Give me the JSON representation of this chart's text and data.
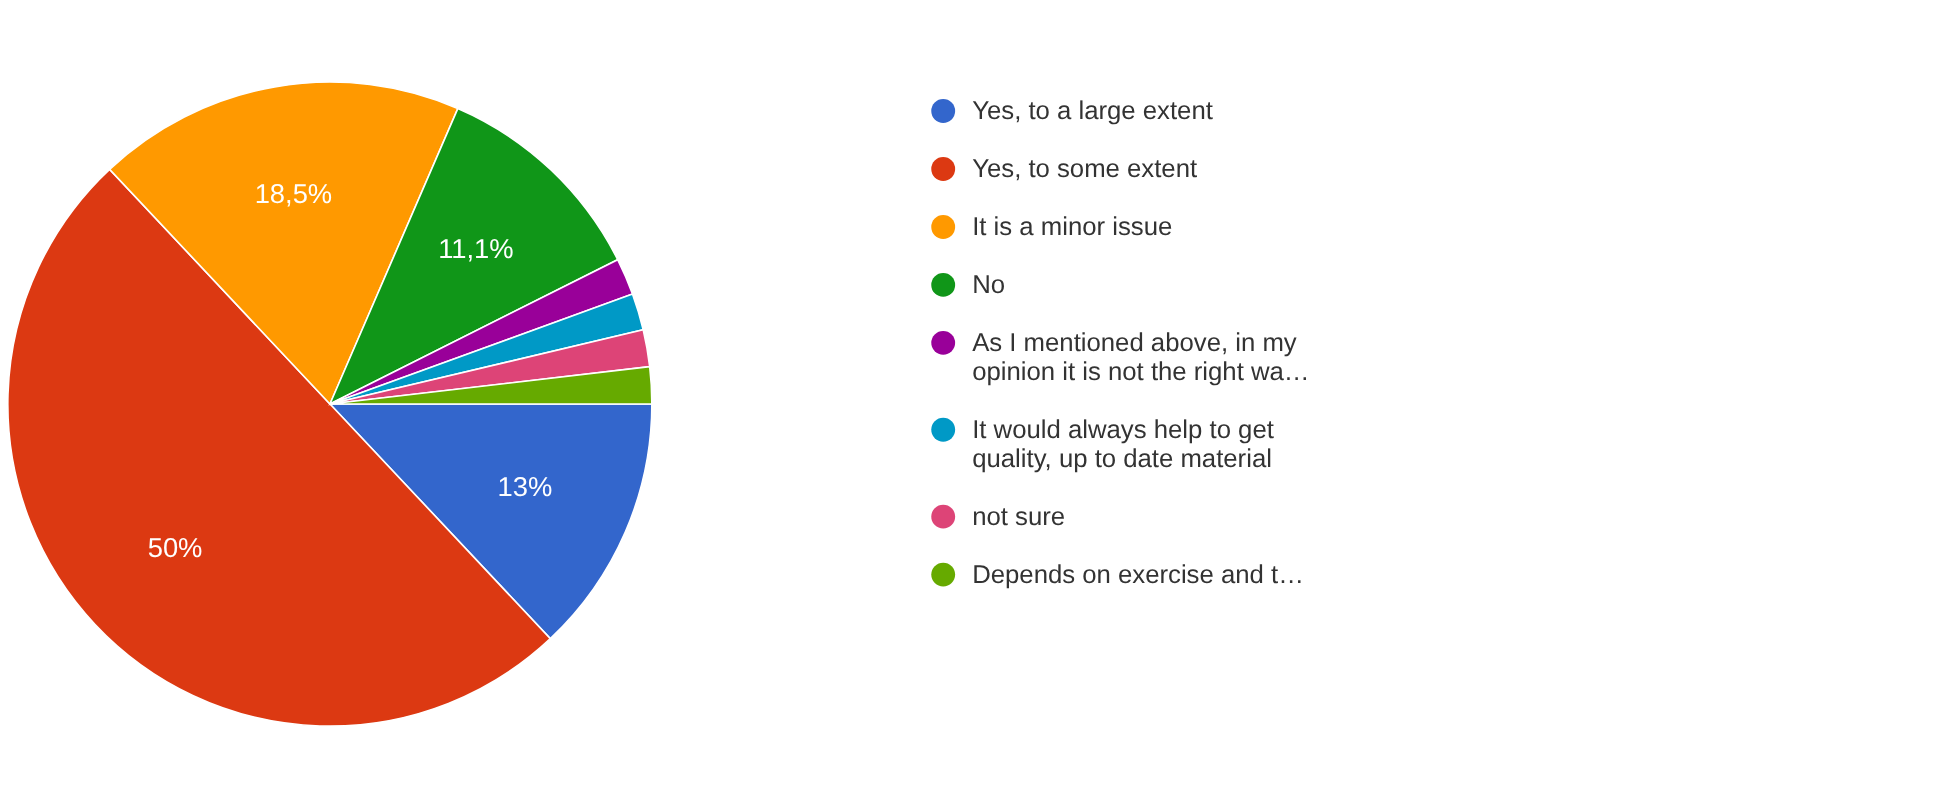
{
  "chart_data": {
    "type": "pie",
    "categories": [
      "Yes, to a large extent",
      "Yes, to some extent",
      "It is a minor issue",
      "No",
      "As I mentioned above, in my opinion it is not the right wa…",
      "It would always help to get quality, up to date material",
      "not sure",
      "Depends on exercise and t…"
    ],
    "values": [
      13,
      50,
      18.5,
      11.1,
      1.85,
      1.85,
      1.85,
      1.85
    ],
    "value_labels": [
      "13%",
      "50%",
      "18,5%",
      "11,1%",
      null,
      null,
      null,
      null
    ],
    "colors": [
      "#3366cc",
      "#dc3912",
      "#ff9900",
      "#109618",
      "#990099",
      "#0099c6",
      "#dd4477",
      "#66aa00"
    ],
    "legend": "right"
  }
}
